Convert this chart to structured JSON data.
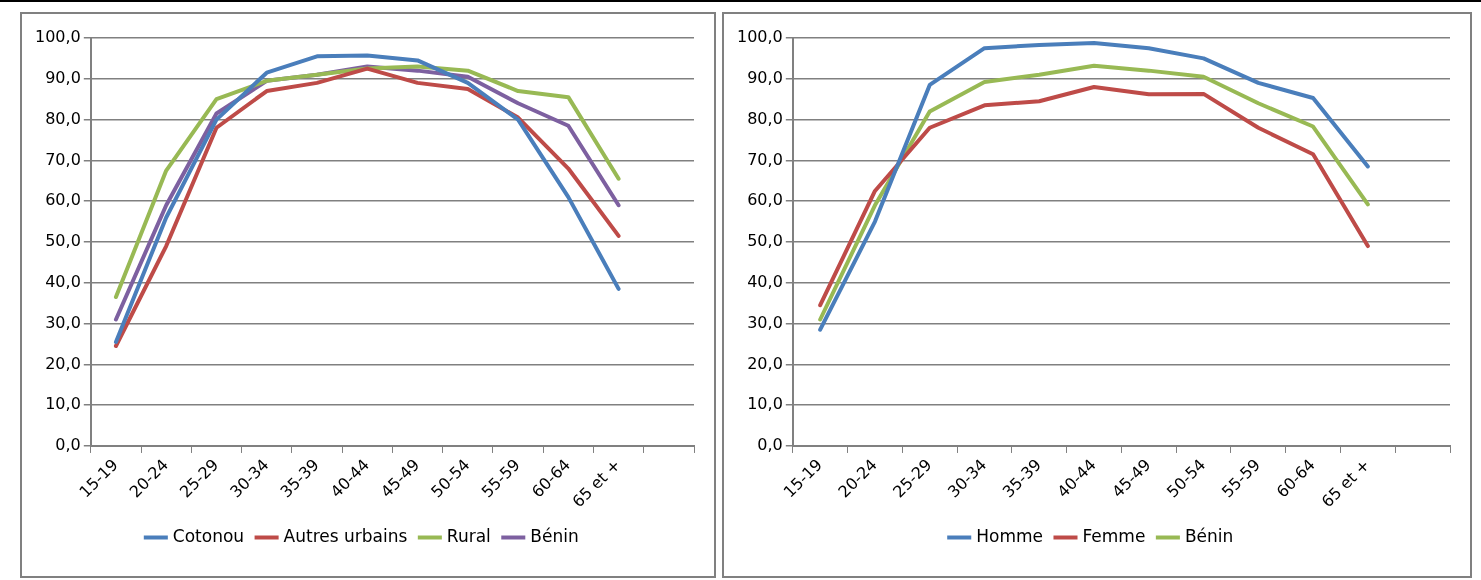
{
  "chart_data": [
    {
      "type": "line",
      "categories": [
        "15-19",
        "20-24",
        "25-29",
        "30-34",
        "35-39",
        "40-44",
        "45-49",
        "50-54",
        "55-59",
        "60-64",
        "65 et +",
        null
      ],
      "series": [
        {
          "name": "Cotonou",
          "color": "#4a7ebb",
          "values": [
            25.5,
            56,
            80,
            91.5,
            95.5,
            95.7,
            94.5,
            89,
            80,
            61,
            38.5,
            null
          ]
        },
        {
          "name": "Autres urbains",
          "color": "#be4b48",
          "values": [
            24.5,
            49,
            78,
            87,
            89,
            92.5,
            89,
            87.5,
            80.5,
            68,
            51.5,
            null
          ]
        },
        {
          "name": "Rural",
          "color": "#98b954",
          "values": [
            36.5,
            67.5,
            85,
            89.5,
            91,
            92.5,
            93,
            92,
            87,
            85.5,
            65.5,
            null
          ]
        },
        {
          "name": "Bénin",
          "color": "#7d60a0",
          "values": [
            31,
            59,
            81.5,
            89.5,
            91,
            93,
            92,
            90.5,
            84,
            78.5,
            59,
            null
          ]
        }
      ],
      "ylim": [
        0,
        100
      ],
      "yticks": [
        {
          "value": 0,
          "label": "0,0"
        },
        {
          "value": 10,
          "label": "10,0"
        },
        {
          "value": 20,
          "label": "20,0"
        },
        {
          "value": 30,
          "label": "30,0"
        },
        {
          "value": 40,
          "label": "40,0"
        },
        {
          "value": 50,
          "label": "50,0"
        },
        {
          "value": 60,
          "label": "60,0"
        },
        {
          "value": 70,
          "label": "70,0"
        },
        {
          "value": 80,
          "label": "80,0"
        },
        {
          "value": 90,
          "label": "90,0"
        },
        {
          "value": 100,
          "label": "100,0"
        }
      ],
      "grid": "y",
      "legend": "bottom",
      "marker": "none",
      "line_style": "solid"
    },
    {
      "type": "line",
      "categories": [
        "15-19",
        "20-24",
        "25-29",
        "30-34",
        "35-39",
        "40-44",
        "45-49",
        "50-54",
        "55-59",
        "60-64",
        "65 et +",
        null
      ],
      "series": [
        {
          "name": "Homme",
          "color": "#4a7ebb",
          "values": [
            28.5,
            55,
            88.5,
            97.5,
            98.3,
            98.8,
            97.5,
            95,
            89,
            85.3,
            68.5,
            null
          ]
        },
        {
          "name": "Femme",
          "color": "#be4b48",
          "values": [
            34.5,
            62.5,
            78,
            83.5,
            84.5,
            88,
            86.2,
            86.3,
            78,
            71.5,
            49,
            null
          ]
        },
        {
          "name": "Bénin",
          "color": "#98b954",
          "values": [
            31,
            59,
            82,
            89.2,
            91,
            93.2,
            92,
            90.5,
            84,
            78.3,
            59.2,
            null
          ]
        }
      ],
      "ylim": [
        0,
        100
      ],
      "yticks": [
        {
          "value": 0,
          "label": "0,0"
        },
        {
          "value": 10,
          "label": "10,0"
        },
        {
          "value": 20,
          "label": "20,0"
        },
        {
          "value": 30,
          "label": "30,0"
        },
        {
          "value": 40,
          "label": "40,0"
        },
        {
          "value": 50,
          "label": "50,0"
        },
        {
          "value": 60,
          "label": "60,0"
        },
        {
          "value": 70,
          "label": "70,0"
        },
        {
          "value": 80,
          "label": "80,0"
        },
        {
          "value": 90,
          "label": "90,0"
        },
        {
          "value": 100,
          "label": "100,0"
        }
      ],
      "grid": "y",
      "legend": "bottom",
      "marker": "none",
      "line_style": "solid"
    }
  ]
}
